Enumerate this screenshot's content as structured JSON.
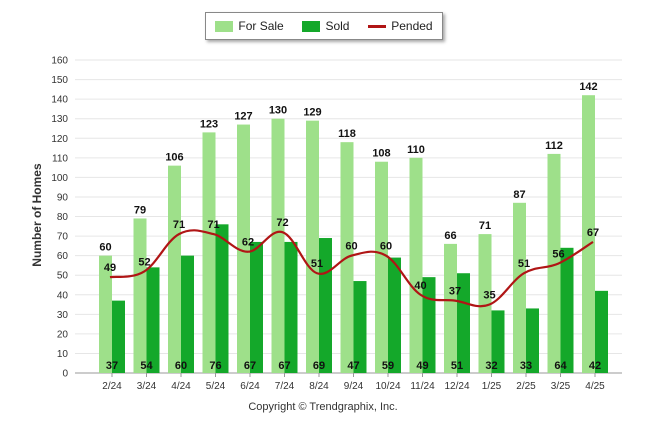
{
  "chart_data": {
    "type": "bar",
    "title": "",
    "xlabel": "",
    "ylabel": "Number of Homes",
    "ylim": [
      0,
      160
    ],
    "yticks": [
      0,
      10,
      20,
      30,
      40,
      50,
      60,
      70,
      80,
      90,
      100,
      110,
      120,
      130,
      140,
      150,
      160
    ],
    "categories": [
      "2/24",
      "3/24",
      "4/24",
      "5/24",
      "6/24",
      "7/24",
      "8/24",
      "9/24",
      "10/24",
      "11/24",
      "12/24",
      "1/25",
      "2/25",
      "3/25",
      "4/25"
    ],
    "series": [
      {
        "name": "For Sale",
        "type": "bar",
        "color": "#9ee08a",
        "values": [
          60,
          79,
          106,
          123,
          127,
          130,
          129,
          118,
          108,
          110,
          66,
          71,
          87,
          112,
          142
        ]
      },
      {
        "name": "Sold",
        "type": "bar",
        "color": "#14a82a",
        "values": [
          37,
          54,
          60,
          76,
          67,
          67,
          69,
          47,
          59,
          49,
          51,
          32,
          33,
          64,
          42
        ]
      },
      {
        "name": "Pended",
        "type": "line",
        "color": "#b01515",
        "values": [
          49,
          52,
          71,
          71,
          62,
          72,
          51,
          60,
          60,
          40,
          37,
          35,
          51,
          56,
          67
        ]
      }
    ],
    "legend": "top-center",
    "grid": true
  },
  "footer": {
    "copyright": "Copyright © Trendgraphix, Inc."
  }
}
